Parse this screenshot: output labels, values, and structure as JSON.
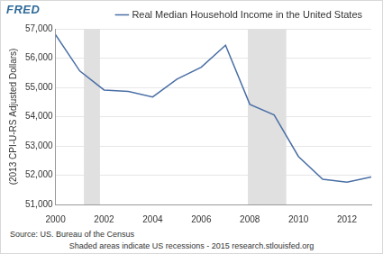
{
  "chart_data": {
    "type": "line",
    "logo": "FRED",
    "y_label": "(2013 CPI-U-RS Adjusted Dollars)",
    "source": "Source: US. Bureau of the Census",
    "note": "Shaded areas indicate US recessions - 2015 research.stlouisfed.org",
    "x": [
      2000,
      2001,
      2002,
      2003,
      2004,
      2005,
      2006,
      2007,
      2008,
      2009,
      2010,
      2011,
      2012,
      2013
    ],
    "series": [
      {
        "name": "Real Median Household Income in the United States",
        "color": "#4a6fa5",
        "values": [
          56800,
          55560,
          54910,
          54860,
          54670,
          55280,
          55690,
          56440,
          54420,
          54060,
          52640,
          51860,
          51760,
          51940
        ]
      }
    ],
    "recessions": [
      [
        2001.17,
        2001.83
      ],
      [
        2007.92,
        2009.5
      ]
    ],
    "xlim": [
      2000,
      2013
    ],
    "xticks": [
      2000,
      2002,
      2004,
      2006,
      2008,
      2010,
      2012
    ],
    "ylim": [
      51000,
      57000
    ],
    "yticks": [
      {
        "value": 51000,
        "label": "51,000"
      },
      {
        "value": 52000,
        "label": "52,000"
      },
      {
        "value": 53000,
        "label": "53,000"
      },
      {
        "value": 54000,
        "label": "54,000"
      },
      {
        "value": 55000,
        "label": "55,000"
      },
      {
        "value": 56000,
        "label": "56,000"
      },
      {
        "value": 57000,
        "label": "57,000"
      }
    ],
    "grid": true,
    "legend": "top"
  }
}
